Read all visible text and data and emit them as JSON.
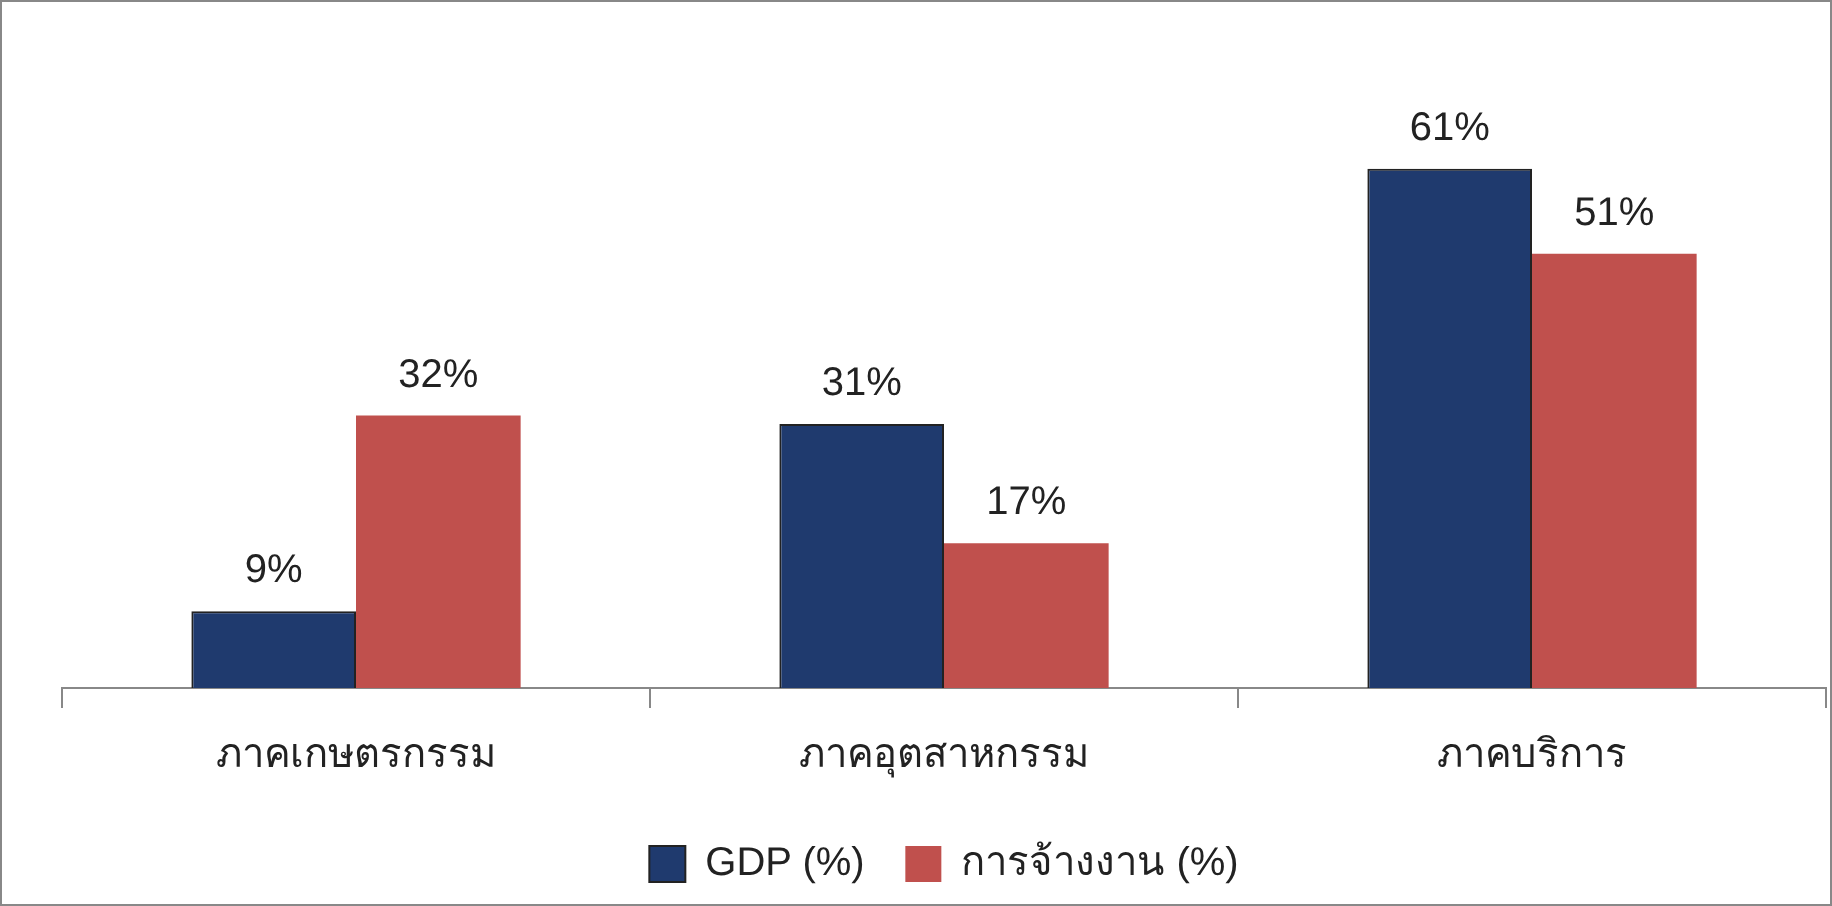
{
  "chart_data": {
    "type": "bar",
    "categories": [
      "ภาคเกษตรกรรม",
      "ภาคอุตสาหกรรม",
      "ภาคบริการ"
    ],
    "series": [
      {
        "name": "GDP (%)",
        "color": "#1f3a6e",
        "values": [
          9,
          31,
          61
        ],
        "value_labels": [
          "9%",
          "31%",
          "61%"
        ]
      },
      {
        "name": "การจ้างงาน (%)",
        "color": "#c0504d",
        "values": [
          32,
          17,
          51
        ],
        "value_labels": [
          "32%",
          "17%",
          "51%"
        ]
      }
    ],
    "legend": "bottom",
    "grid": false
  }
}
